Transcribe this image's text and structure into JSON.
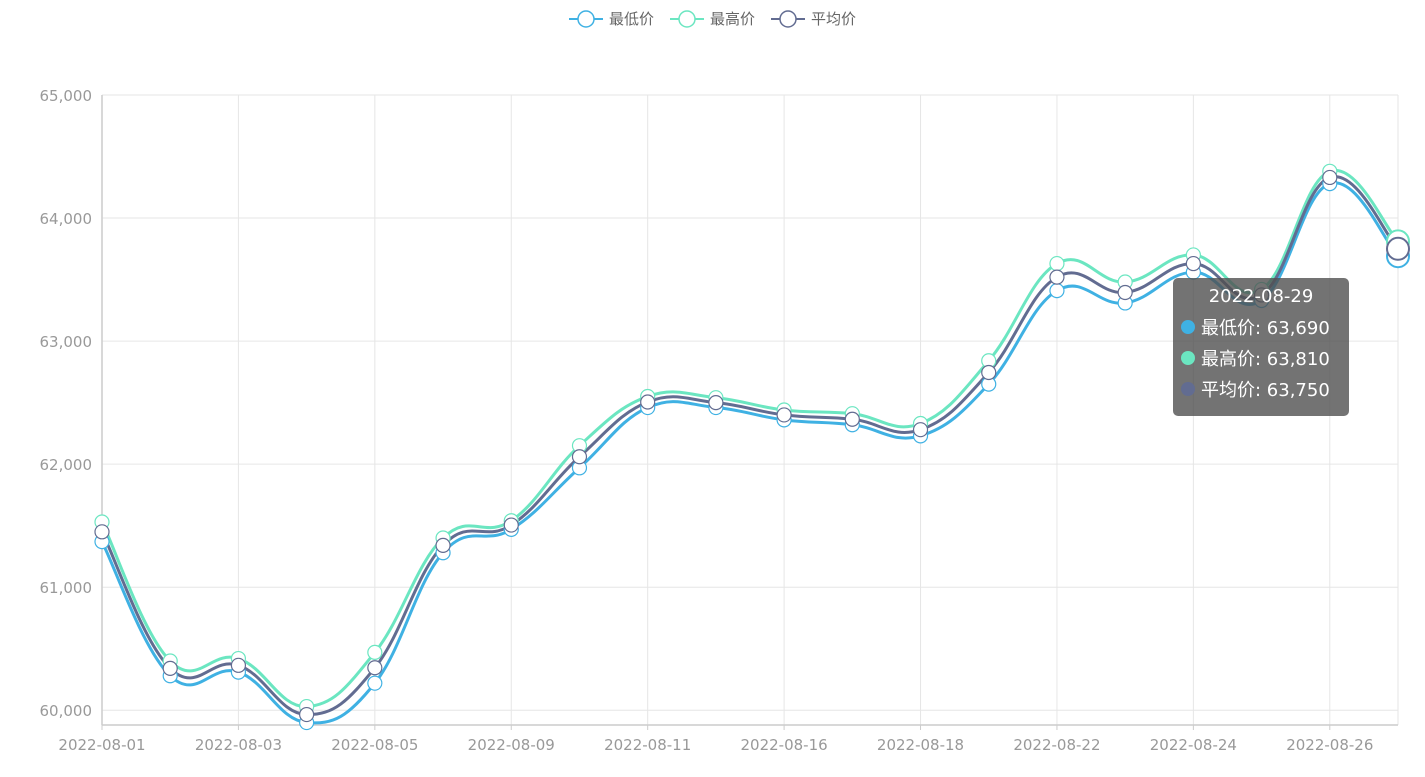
{
  "legend": [
    {
      "name": "最低价",
      "color": "#3fb1e3"
    },
    {
      "name": "最高价",
      "color": "#6be6c1"
    },
    {
      "name": "平均价",
      "color": "#626c91"
    }
  ],
  "tooltip": {
    "title": "2022-08-29",
    "rows": [
      {
        "label": "最低价: 63,690",
        "color": "#3fb1e3"
      },
      {
        "label": "最高价: 63,810",
        "color": "#6be6c1"
      },
      {
        "label": "平均价: 63,750",
        "color": "#626c91"
      }
    ]
  },
  "chart_data": {
    "type": "line",
    "x": [
      "2022-08-01",
      "2022-08-02",
      "2022-08-03",
      "2022-08-04",
      "2022-08-05",
      "2022-08-08",
      "2022-08-09",
      "2022-08-10",
      "2022-08-11",
      "2022-08-12",
      "2022-08-16",
      "2022-08-17",
      "2022-08-18",
      "2022-08-19",
      "2022-08-22",
      "2022-08-23",
      "2022-08-24",
      "2022-08-25",
      "2022-08-26",
      "2022-08-29"
    ],
    "xticklabels": [
      "2022-08-01",
      "2022-08-03",
      "2022-08-05",
      "2022-08-09",
      "2022-08-11",
      "2022-08-16",
      "2022-08-18",
      "2022-08-22",
      "2022-08-24",
      "2022-08-26"
    ],
    "yticklabels": [
      "60,000",
      "61,000",
      "62,000",
      "63,000",
      "64,000",
      "65,000"
    ],
    "ylim": [
      59880,
      65000
    ],
    "series": [
      {
        "name": "最低价",
        "values": [
          61370,
          60280,
          60310,
          59900,
          60220,
          61280,
          61470,
          61970,
          62460,
          62460,
          62360,
          62320,
          62230,
          62650,
          63410,
          63310,
          63560,
          63330,
          64280,
          63690
        ]
      },
      {
        "name": "最高价",
        "values": [
          61530,
          60400,
          60420,
          60030,
          60470,
          61400,
          61540,
          62150,
          62550,
          62540,
          62440,
          62410,
          62330,
          62840,
          63630,
          63480,
          63700,
          63420,
          64380,
          63810
        ]
      },
      {
        "name": "平均价",
        "values": [
          61450,
          60340,
          60365,
          59965,
          60345,
          61340,
          61505,
          62060,
          62505,
          62500,
          62400,
          62365,
          62280,
          62745,
          63520,
          63395,
          63630,
          63375,
          64330,
          63750
        ]
      }
    ],
    "grid": true,
    "legend_position": "top-center",
    "highlighted_index": 19
  }
}
